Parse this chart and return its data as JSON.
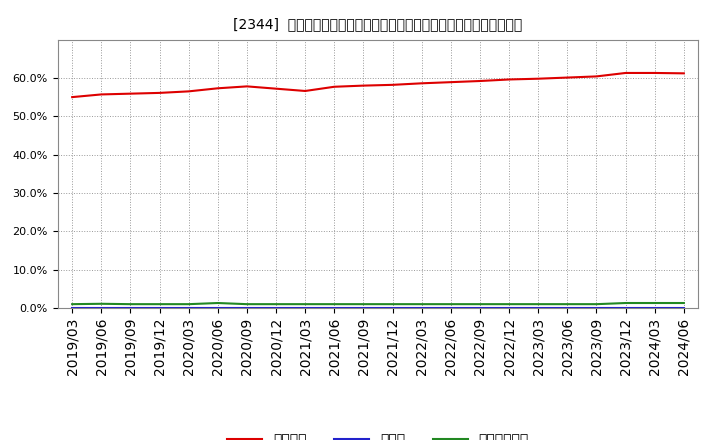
{
  "title": "[2344]  自己資本、のれん、繰延税金資産の総資産に対する比率の推移",
  "x_labels": [
    "2019/03",
    "2019/06",
    "2019/09",
    "2019/12",
    "2020/03",
    "2020/06",
    "2020/09",
    "2020/12",
    "2021/03",
    "2021/06",
    "2021/09",
    "2021/12",
    "2022/03",
    "2022/06",
    "2022/09",
    "2022/12",
    "2023/03",
    "2023/06",
    "2023/09",
    "2023/12",
    "2024/03",
    "2024/06"
  ],
  "jikoshihon": [
    0.55,
    0.557,
    0.559,
    0.561,
    0.565,
    0.573,
    0.578,
    0.572,
    0.566,
    0.577,
    0.58,
    0.582,
    0.586,
    0.589,
    0.592,
    0.596,
    0.598,
    0.601,
    0.604,
    0.613,
    0.613,
    0.612
  ],
  "noren": [
    0.0,
    0.0,
    0.0,
    0.0,
    0.0,
    0.0,
    0.0,
    0.0,
    0.0,
    0.0,
    0.0,
    0.0,
    0.0,
    0.0,
    0.0,
    0.0,
    0.0,
    0.0,
    0.0,
    0.0,
    0.0,
    0.0
  ],
  "kurinobezeikinsisan": [
    0.01,
    0.011,
    0.01,
    0.01,
    0.01,
    0.013,
    0.01,
    0.01,
    0.01,
    0.01,
    0.01,
    0.01,
    0.01,
    0.01,
    0.01,
    0.01,
    0.01,
    0.01,
    0.01,
    0.013,
    0.013,
    0.013
  ],
  "color_jikoshihon": "#dd0000",
  "color_noren": "#2222cc",
  "color_kurinobe": "#228822",
  "ylim": [
    0.0,
    0.7
  ],
  "yticks": [
    0.0,
    0.1,
    0.2,
    0.3,
    0.4,
    0.5,
    0.6
  ],
  "background_color": "#ffffff",
  "plot_bg_color": "#ffffff",
  "grid_color": "#999999",
  "legend_labels": [
    "自己資本",
    "のれん",
    "繰延税金資産"
  ],
  "title_fontsize": 11,
  "tick_fontsize": 8
}
